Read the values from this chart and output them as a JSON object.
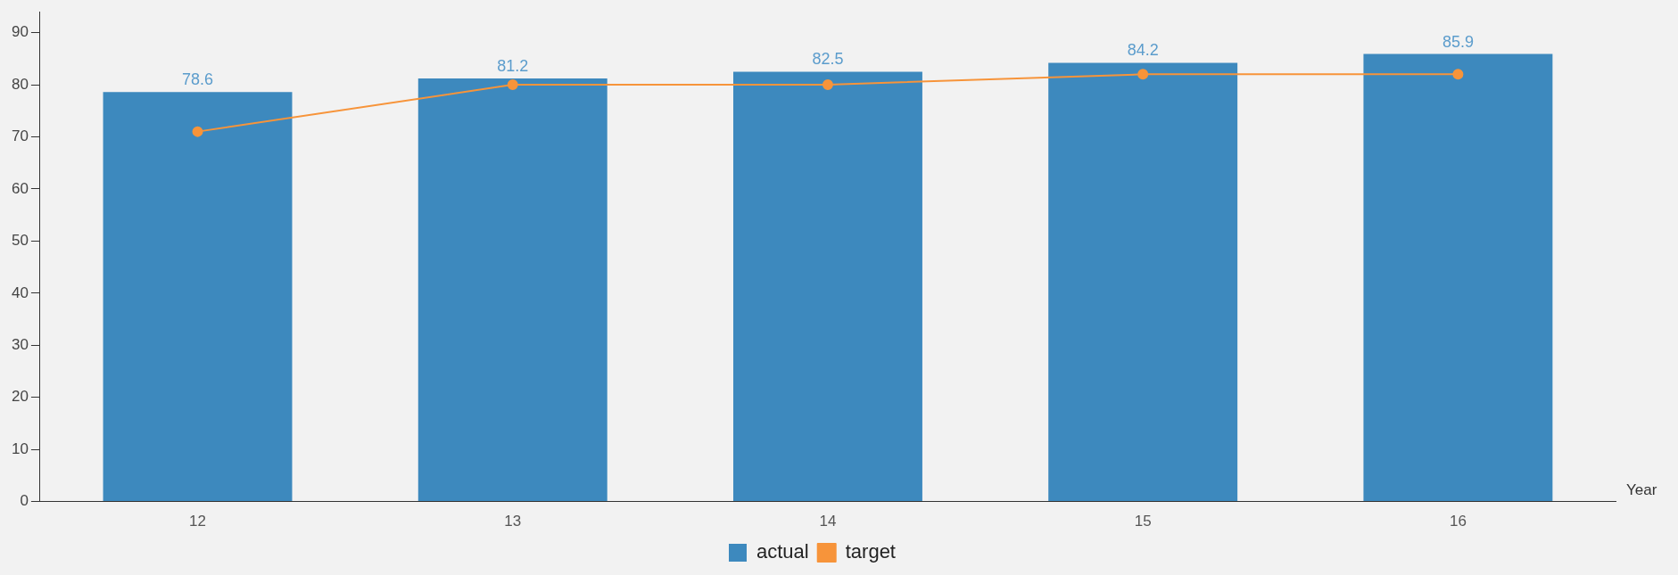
{
  "chart_data": {
    "type": "bar",
    "xlabel": "Year",
    "categories": [
      "12",
      "13",
      "14",
      "15",
      "16"
    ],
    "series": [
      {
        "name": "actual",
        "color": "#3d89be",
        "values": [
          78.6,
          81.2,
          82.5,
          84.2,
          85.9
        ],
        "value_labels": [
          "78.6",
          "81.2",
          "82.5",
          "84.2",
          "85.9"
        ]
      },
      {
        "name": "target",
        "type": "line",
        "color": "#f7943a",
        "values": [
          71,
          80,
          80,
          82,
          82
        ]
      }
    ],
    "ylim": [
      0,
      94
    ],
    "yticks": [
      0,
      10,
      20,
      30,
      40,
      50,
      60,
      70,
      80,
      90
    ],
    "grid": false,
    "legend": "bottom",
    "marker": "circle",
    "line_style": "solid"
  }
}
